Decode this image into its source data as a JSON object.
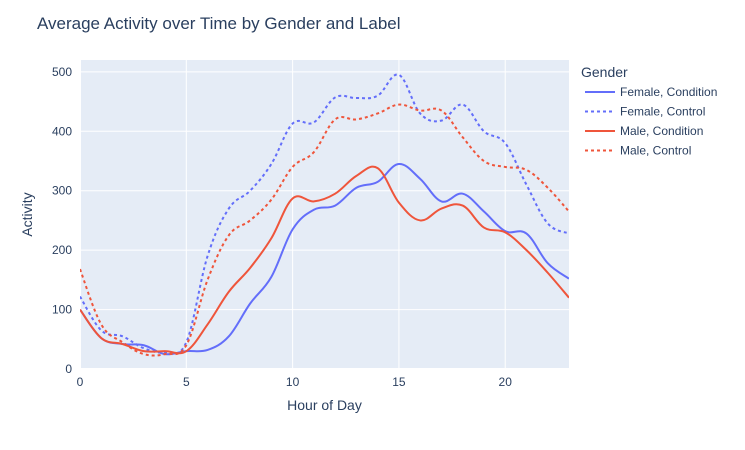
{
  "chart_data": {
    "type": "line",
    "title": "Average Activity over Time by Gender and Label",
    "xlabel": "Hour of Day",
    "ylabel": "Activity",
    "xlim": [
      0,
      23
    ],
    "ylim": [
      0,
      520
    ],
    "xticks": [
      0,
      5,
      10,
      15,
      20
    ],
    "yticks": [
      0,
      100,
      200,
      300,
      400,
      500
    ],
    "grid": true,
    "legend_title": "Gender",
    "legend_position": "right",
    "x": [
      0,
      1,
      2,
      3,
      4,
      5,
      6,
      7,
      8,
      9,
      10,
      11,
      12,
      13,
      14,
      15,
      16,
      17,
      18,
      19,
      20,
      21,
      22,
      23
    ],
    "series": [
      {
        "name": "Female, Condition",
        "color": "#636efa",
        "dash": "solid",
        "values": [
          100,
          52,
          42,
          40,
          25,
          30,
          32,
          55,
          110,
          155,
          235,
          268,
          275,
          305,
          315,
          345,
          320,
          282,
          295,
          265,
          232,
          228,
          178,
          152
        ]
      },
      {
        "name": "Female, Control",
        "color": "#636efa",
        "dash": "dot",
        "values": [
          122,
          65,
          55,
          35,
          28,
          45,
          190,
          270,
          300,
          345,
          413,
          415,
          457,
          456,
          460,
          495,
          430,
          418,
          445,
          400,
          380,
          310,
          245,
          228
        ]
      },
      {
        "name": "Male, Condition",
        "color": "#ef553b",
        "dash": "solid",
        "values": [
          100,
          52,
          42,
          30,
          30,
          30,
          75,
          130,
          170,
          220,
          287,
          282,
          295,
          325,
          338,
          280,
          250,
          270,
          275,
          238,
          230,
          200,
          162,
          120
        ]
      },
      {
        "name": "Male, Control",
        "color": "#ef553b",
        "dash": "dot",
        "values": [
          168,
          75,
          45,
          25,
          25,
          40,
          150,
          225,
          250,
          285,
          340,
          365,
          420,
          420,
          430,
          445,
          435,
          435,
          390,
          350,
          340,
          335,
          305,
          265
        ]
      }
    ]
  }
}
